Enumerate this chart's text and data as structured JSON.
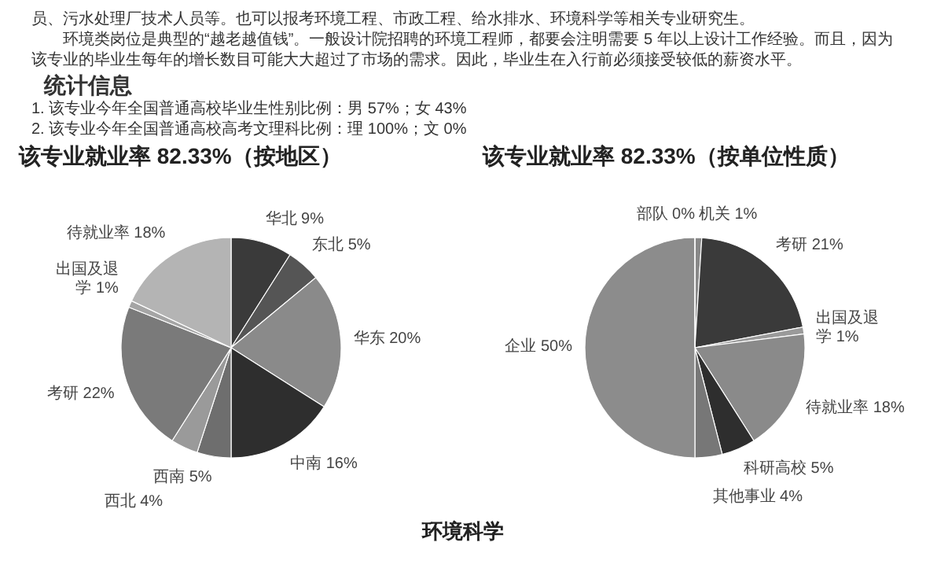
{
  "chart_data": [
    {
      "type": "pie",
      "title": "该专业就业率 82.33%（按地区）",
      "annotations": [
        "员、污水处理厂技术人员等。也可以报考环境工程、市政工程、给水排水、环境科学等相关专业研究生。",
        "环境类岗位是典型的“越老越值钱”。一般设计院招聘的环境工程师，都要会注明需要 5 年以上设计工作经验。而且，因为该专业的毕业生每年的增长数目可能大大超过了市场的需求。因此，毕业生在入行前必须接受较低的薪资水平。",
        "统计信息",
        "1. 该专业今年全国普通高校毕业生性别比例：男 57%；女 43%",
        "2. 该专业今年全国普通高校高考文理科比例：理 100%；文 0%"
      ],
      "categories": [
        "华北",
        "东北",
        "华东",
        "中南",
        "西南",
        "西北",
        "考研",
        "出国及退学",
        "待就业率"
      ],
      "values": [
        9,
        5,
        20,
        16,
        5,
        4,
        22,
        1,
        18
      ],
      "value_labels": [
        "9%",
        "5%",
        "20%",
        "16%",
        "5%",
        "4%",
        "22%",
        "1%",
        "18%"
      ],
      "colors": [
        "#3a3a3a",
        "#555555",
        "#8a8a8a",
        "#2e2e2e",
        "#6e6e6e",
        "#9a9a9a",
        "#7a7a7a",
        "#a5a5a5",
        "#b4b4b4"
      ]
    },
    {
      "type": "pie",
      "title": "该专业就业率 82.33%（按单位性质）",
      "annotations": [
        "环境科学"
      ],
      "categories": [
        "机关",
        "考研",
        "出国及退学",
        "待就业率",
        "科研高校",
        "其他事业",
        "企业",
        "部队"
      ],
      "values": [
        1,
        21,
        1,
        18,
        5,
        4,
        50,
        0
      ],
      "value_labels": [
        "1%",
        "21%",
        "1%",
        "18%",
        "5%",
        "4%",
        "50%",
        "0%"
      ],
      "colors": [
        "#888888",
        "#3a3a3a",
        "#9a9a9a",
        "#8a8a8a",
        "#2e2e2e",
        "#777777",
        "#8c8c8c",
        "#999999"
      ]
    }
  ]
}
